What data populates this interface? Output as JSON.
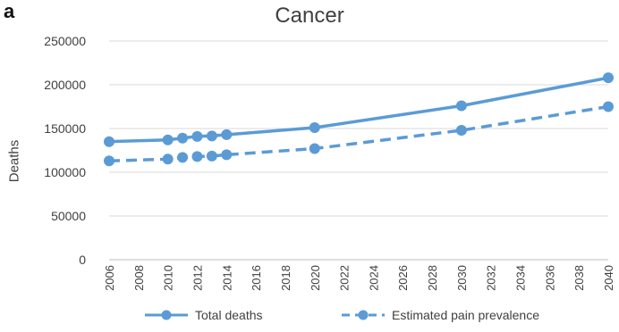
{
  "panel_letter": "a",
  "chart_data": {
    "type": "line",
    "title": "Cancer",
    "xlabel": "",
    "ylabel": "Deaths",
    "xlim": [
      2006,
      2040
    ],
    "ylim": [
      0,
      250000
    ],
    "x_ticks": [
      2006,
      2008,
      2010,
      2012,
      2014,
      2016,
      2018,
      2020,
      2022,
      2024,
      2026,
      2028,
      2030,
      2032,
      2034,
      2036,
      2038,
      2040
    ],
    "y_ticks": [
      0,
      50000,
      100000,
      150000,
      200000,
      250000
    ],
    "grid": true,
    "legend_position": "bottom",
    "series": [
      {
        "name": "Total deaths",
        "style": "solid",
        "color": "#5b9bd5",
        "x": [
          2006,
          2010,
          2011,
          2012,
          2013,
          2014,
          2020,
          2030,
          2040
        ],
        "y": [
          135000,
          137000,
          139000,
          141000,
          141500,
          143000,
          151000,
          176000,
          208000
        ]
      },
      {
        "name": "Estimated pain prevalence",
        "style": "dashed",
        "color": "#5b9bd5",
        "x": [
          2006,
          2010,
          2011,
          2012,
          2013,
          2014,
          2020,
          2030,
          2040
        ],
        "y": [
          113000,
          115000,
          117000,
          118000,
          118500,
          120000,
          127000,
          148000,
          175000
        ]
      }
    ]
  }
}
